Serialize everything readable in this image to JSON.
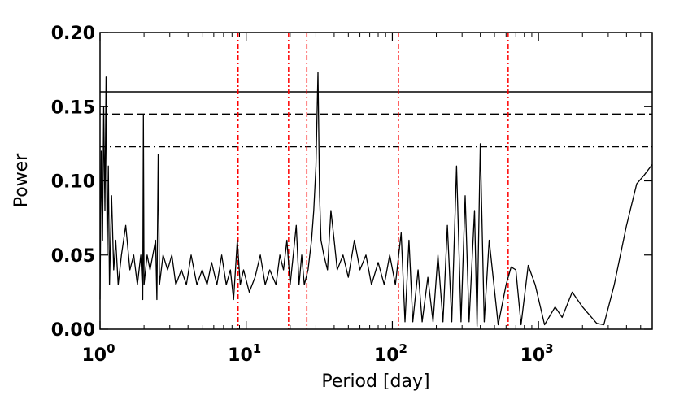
{
  "chart_data": {
    "type": "line",
    "title": "",
    "xlabel": "Period [day]",
    "ylabel": "Power",
    "xscale": "log",
    "xlim": [
      1,
      6000
    ],
    "ylim": [
      0,
      0.2
    ],
    "grid": false,
    "legend": "none",
    "y_ticks": [
      "0.00",
      "0.05",
      "0.10",
      "0.15",
      "0.20"
    ],
    "x_ticks": [
      {
        "base": "10",
        "exp": "0",
        "value": 1
      },
      {
        "base": "10",
        "exp": "1",
        "value": 10
      },
      {
        "base": "10",
        "exp": "2",
        "value": 100
      },
      {
        "base": "10",
        "exp": "3",
        "value": 1000
      }
    ],
    "threshold_lines": [
      {
        "y": 0.16,
        "style": "solid"
      },
      {
        "y": 0.145,
        "style": "dashed"
      },
      {
        "y": 0.123,
        "style": "dashdot"
      }
    ],
    "marked_periods": [
      8.8,
      19.5,
      26,
      110,
      620
    ],
    "marked_color": "#ff0000",
    "series": [
      {
        "points": [
          [
            1.0,
            0.02
          ],
          [
            1.02,
            0.12
          ],
          [
            1.04,
            0.06
          ],
          [
            1.06,
            0.15
          ],
          [
            1.08,
            0.08
          ],
          [
            1.1,
            0.17
          ],
          [
            1.12,
            0.05
          ],
          [
            1.14,
            0.11
          ],
          [
            1.16,
            0.03
          ],
          [
            1.2,
            0.09
          ],
          [
            1.24,
            0.04
          ],
          [
            1.28,
            0.06
          ],
          [
            1.33,
            0.03
          ],
          [
            1.4,
            0.05
          ],
          [
            1.5,
            0.07
          ],
          [
            1.6,
            0.04
          ],
          [
            1.7,
            0.05
          ],
          [
            1.8,
            0.03
          ],
          [
            1.9,
            0.05
          ],
          [
            1.96,
            0.02
          ],
          [
            1.98,
            0.144
          ],
          [
            2.0,
            0.03
          ],
          [
            2.1,
            0.05
          ],
          [
            2.2,
            0.04
          ],
          [
            2.4,
            0.06
          ],
          [
            2.45,
            0.02
          ],
          [
            2.5,
            0.118
          ],
          [
            2.55,
            0.03
          ],
          [
            2.7,
            0.05
          ],
          [
            2.9,
            0.04
          ],
          [
            3.1,
            0.05
          ],
          [
            3.3,
            0.03
          ],
          [
            3.6,
            0.04
          ],
          [
            3.9,
            0.03
          ],
          [
            4.2,
            0.05
          ],
          [
            4.6,
            0.03
          ],
          [
            5.0,
            0.04
          ],
          [
            5.4,
            0.03
          ],
          [
            5.8,
            0.045
          ],
          [
            6.3,
            0.03
          ],
          [
            6.8,
            0.05
          ],
          [
            7.3,
            0.03
          ],
          [
            7.8,
            0.04
          ],
          [
            8.2,
            0.02
          ],
          [
            8.7,
            0.06
          ],
          [
            9.1,
            0.03
          ],
          [
            9.6,
            0.04
          ],
          [
            10.5,
            0.025
          ],
          [
            11.5,
            0.035
          ],
          [
            12.5,
            0.05
          ],
          [
            13.5,
            0.03
          ],
          [
            14.5,
            0.04
          ],
          [
            16.0,
            0.03
          ],
          [
            17.0,
            0.05
          ],
          [
            18.0,
            0.04
          ],
          [
            19.0,
            0.06
          ],
          [
            20.0,
            0.03
          ],
          [
            21.0,
            0.05
          ],
          [
            22.0,
            0.07
          ],
          [
            23.0,
            0.03
          ],
          [
            24.0,
            0.05
          ],
          [
            25.0,
            0.03
          ],
          [
            26.5,
            0.04
          ],
          [
            28.0,
            0.06
          ],
          [
            29.0,
            0.08
          ],
          [
            30.0,
            0.11
          ],
          [
            31.0,
            0.173
          ],
          [
            31.8,
            0.09
          ],
          [
            32.5,
            0.06
          ],
          [
            34.0,
            0.05
          ],
          [
            36.0,
            0.04
          ],
          [
            38.0,
            0.08
          ],
          [
            40.0,
            0.06
          ],
          [
            42.0,
            0.04
          ],
          [
            46.0,
            0.05
          ],
          [
            50.0,
            0.035
          ],
          [
            55.0,
            0.06
          ],
          [
            60.0,
            0.04
          ],
          [
            66.0,
            0.05
          ],
          [
            72.0,
            0.03
          ],
          [
            80.0,
            0.045
          ],
          [
            88.0,
            0.03
          ],
          [
            96.0,
            0.05
          ],
          [
            105.0,
            0.03
          ],
          [
            115.0,
            0.065
          ],
          [
            122.0,
            0.005
          ],
          [
            130.0,
            0.06
          ],
          [
            138.0,
            0.005
          ],
          [
            150.0,
            0.04
          ],
          [
            160.0,
            0.005
          ],
          [
            175.0,
            0.035
          ],
          [
            190.0,
            0.005
          ],
          [
            205.0,
            0.05
          ],
          [
            222.0,
            0.005
          ],
          [
            238.0,
            0.07
          ],
          [
            255.0,
            0.005
          ],
          [
            275.0,
            0.11
          ],
          [
            295.0,
            0.005
          ],
          [
            315.0,
            0.09
          ],
          [
            335.0,
            0.005
          ],
          [
            365.0,
            0.08
          ],
          [
            380.0,
            0.002
          ],
          [
            400.0,
            0.125
          ],
          [
            425.0,
            0.005
          ],
          [
            460.0,
            0.06
          ],
          [
            530.0,
            0.003
          ],
          [
            600.0,
            0.03
          ],
          [
            650.0,
            0.042
          ],
          [
            700.0,
            0.04
          ],
          [
            760.0,
            0.003
          ],
          [
            850.0,
            0.043
          ],
          [
            950.0,
            0.03
          ],
          [
            1100.0,
            0.003
          ],
          [
            1300.0,
            0.015
          ],
          [
            1450.0,
            0.008
          ],
          [
            1700.0,
            0.025
          ],
          [
            2000.0,
            0.015
          ],
          [
            2500.0,
            0.004
          ],
          [
            2800.0,
            0.003
          ],
          [
            3300.0,
            0.03
          ],
          [
            4000.0,
            0.07
          ],
          [
            4700.0,
            0.098
          ],
          [
            5300.0,
            0.104
          ],
          [
            6000.0,
            0.111
          ]
        ]
      }
    ]
  }
}
